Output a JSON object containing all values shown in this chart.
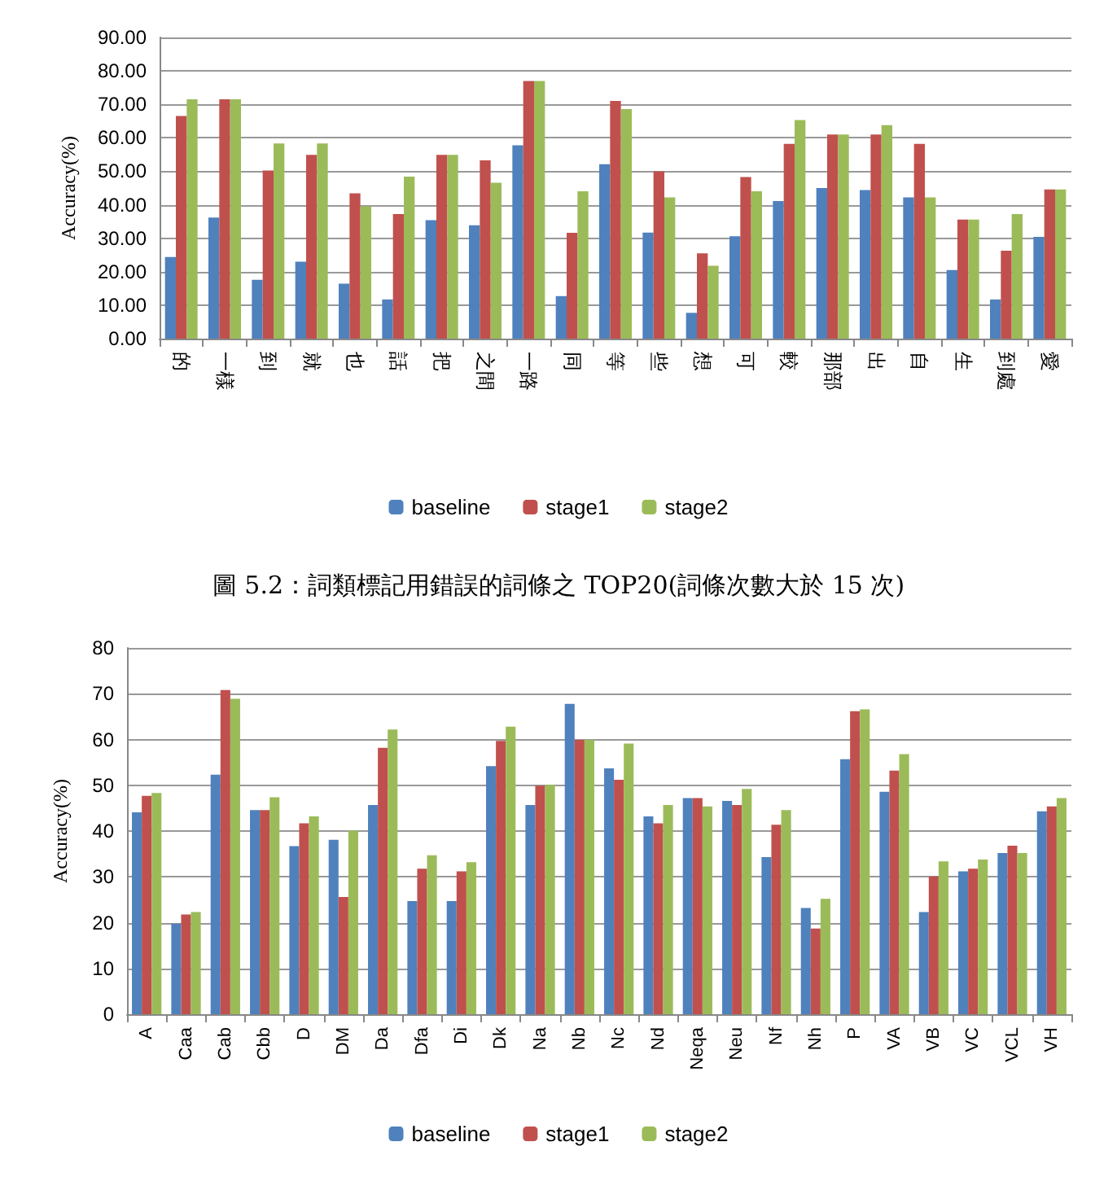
{
  "chart_data": [
    {
      "type": "bar",
      "ylabel": "Accuracy(%)",
      "categories": [
        "的",
        "一樣",
        "到",
        "就",
        "也",
        "話",
        "把",
        "之間",
        "一路",
        "同",
        "等",
        "些",
        "想",
        "可",
        "較",
        "那部",
        "出",
        "自",
        "生",
        "到處",
        "愛"
      ],
      "series": [
        {
          "name": "baseline",
          "color": "#4f81bd",
          "values": [
            24.4,
            36.2,
            17.6,
            23,
            16.4,
            11.7,
            35.4,
            33.9,
            57.8,
            12.7,
            52.1,
            31.7,
            7.7,
            30.6,
            41.1,
            45,
            44.4,
            42.2,
            20.5,
            11.7,
            30.4
          ]
        },
        {
          "name": "stage1",
          "color": "#c0504d",
          "values": [
            66.5,
            71.5,
            50.2,
            54.9,
            43.4,
            37.2,
            54.9,
            53.3,
            77,
            31.6,
            71,
            50,
            25.5,
            48.3,
            58.2,
            61,
            61,
            58.2,
            35.6,
            26.3,
            44.6
          ]
        },
        {
          "name": "stage2",
          "color": "#9bbb59",
          "values": [
            71.5,
            71.5,
            58.3,
            58.3,
            39.5,
            48.4,
            54.9,
            46.6,
            77,
            44,
            68.6,
            42.2,
            21.8,
            44,
            65.3,
            61,
            63.8,
            42.2,
            35.6,
            37.2,
            44.6
          ]
        }
      ],
      "ylim": [
        0,
        90
      ],
      "yticks": [
        {
          "value": 0,
          "label": "0.00"
        },
        {
          "value": 10,
          "label": "10.00"
        },
        {
          "value": 20,
          "label": "20.00"
        },
        {
          "value": 30,
          "label": "30.00"
        },
        {
          "value": 40,
          "label": "40.00"
        },
        {
          "value": 50,
          "label": "50.00"
        },
        {
          "value": 60,
          "label": "60.00"
        },
        {
          "value": 70,
          "label": "70.00"
        },
        {
          "value": 80,
          "label": "80.00"
        },
        {
          "value": 90,
          "label": "90.00"
        }
      ],
      "grid": "y",
      "legend": "bottom",
      "annotations": [
        "圖 5.2：詞類標記用錯誤的詞條之 TOP20(詞條次數大於 15 次)"
      ]
    },
    {
      "type": "bar",
      "ylabel": "Accuracy(%)",
      "categories": [
        "A",
        "Caa",
        "Cab",
        "Cbb",
        "D",
        "DM",
        "Da",
        "Dfa",
        "Di",
        "Dk",
        "Na",
        "Nb",
        "Nc",
        "Nd",
        "Neqa",
        "Neu",
        "Nf",
        "Nh",
        "P",
        "VA",
        "VB",
        "VC",
        "VCL",
        "VH"
      ],
      "series": [
        {
          "name": "baseline",
          "color": "#4f81bd",
          "values": [
            44.1,
            19.8,
            52.3,
            44.6,
            36.7,
            38.1,
            45.7,
            24.7,
            24.7,
            54.2,
            45.7,
            67.8,
            53.7,
            43.2,
            47.2,
            46.6,
            34.3,
            23.2,
            55.7,
            48.6,
            22.3,
            31.2,
            35.2,
            44.3
          ]
        },
        {
          "name": "stage1",
          "color": "#c0504d",
          "values": [
            47.7,
            21.8,
            70.8,
            44.6,
            41.7,
            25.6,
            58.2,
            31.8,
            31.2,
            59.7,
            49.9,
            59.9,
            51.2,
            41.7,
            47.2,
            45.7,
            41.4,
            18.7,
            66.2,
            53.2,
            30.1,
            31.8,
            36.8,
            45.4
          ]
        },
        {
          "name": "stage2",
          "color": "#9bbb59",
          "values": [
            48.3,
            22.3,
            68.9,
            47.4,
            43.2,
            40.1,
            62.2,
            34.7,
            33.2,
            62.8,
            50.1,
            59.9,
            59.1,
            45.7,
            45.4,
            49.2,
            44.6,
            25.2,
            66.6,
            56.8,
            33.4,
            33.8,
            35.2,
            47.2
          ]
        }
      ],
      "ylim": [
        0,
        80
      ],
      "yticks": [
        0,
        10,
        20,
        30,
        40,
        50,
        60,
        70,
        80
      ],
      "grid": "y",
      "legend": "bottom"
    }
  ]
}
